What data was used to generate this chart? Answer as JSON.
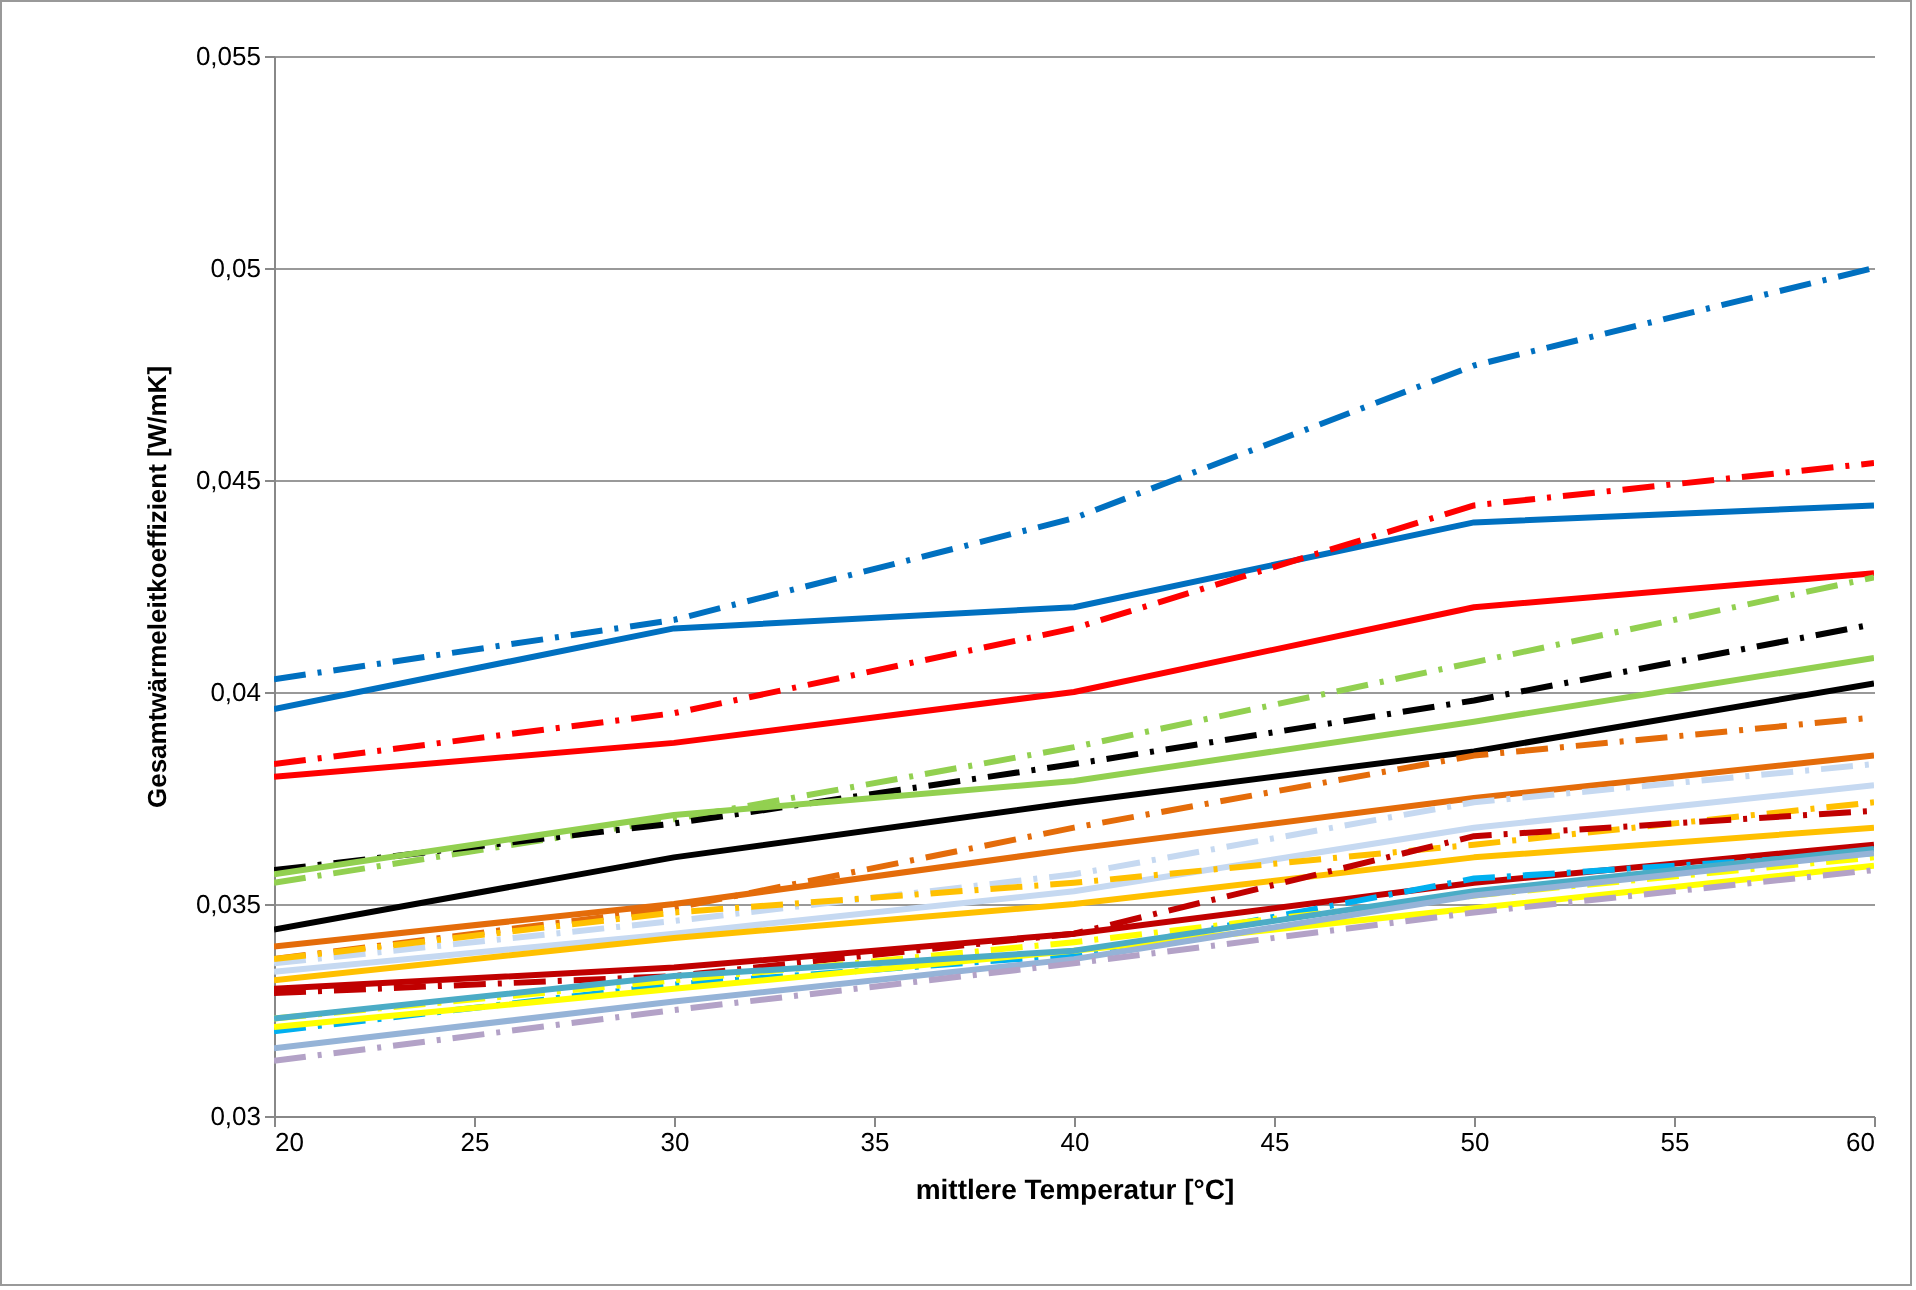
{
  "chart_data": {
    "type": "line",
    "xlabel": "mittlere Temperatur [°C]",
    "ylabel": "Gesamtwärmeleitkoeffizient [W/mK]",
    "x": [
      20,
      30,
      40,
      50,
      60
    ],
    "xlim": [
      20,
      60
    ],
    "xticks": [
      20,
      25,
      30,
      35,
      40,
      45,
      50,
      55,
      60
    ],
    "ylim": [
      0.03,
      0.055
    ],
    "yticks": [
      {
        "value": 0.03,
        "label": "0,03"
      },
      {
        "value": 0.035,
        "label": "0,035"
      },
      {
        "value": 0.04,
        "label": "0,04"
      },
      {
        "value": 0.045,
        "label": "0,045"
      },
      {
        "value": 0.05,
        "label": "0,05"
      },
      {
        "value": 0.055,
        "label": "0,055"
      }
    ],
    "grid": "y",
    "marker": "none",
    "series": [
      {
        "color": "#0070c0",
        "line_style": "dashdot",
        "values": [
          0.0403,
          0.0417,
          0.0441,
          0.0477,
          0.05
        ]
      },
      {
        "color": "#0070c0",
        "line_style": "solid",
        "values": [
          0.0396,
          0.0415,
          0.042,
          0.044,
          0.0444
        ]
      },
      {
        "color": "#ff0000",
        "line_style": "dashdot",
        "values": [
          0.0383,
          0.0395,
          0.0415,
          0.0444,
          0.0454
        ]
      },
      {
        "color": "#ff0000",
        "line_style": "solid",
        "values": [
          0.038,
          0.0388,
          0.04,
          0.042,
          0.0428
        ]
      },
      {
        "color": "#92d050",
        "line_style": "dashdot",
        "values": [
          0.0355,
          0.037,
          0.0387,
          0.0407,
          0.0427
        ]
      },
      {
        "color": "#000000",
        "line_style": "dashdot",
        "values": [
          0.0358,
          0.0369,
          0.0383,
          0.0398,
          0.0416
        ]
      },
      {
        "color": "#92d050",
        "line_style": "solid",
        "values": [
          0.0357,
          0.0371,
          0.0379,
          0.0393,
          0.0408
        ]
      },
      {
        "color": "#000000",
        "line_style": "solid",
        "values": [
          0.0344,
          0.0361,
          0.0374,
          0.0386,
          0.0402
        ]
      },
      {
        "color": "#e46c0a",
        "line_style": "dashdot",
        "values": [
          0.0337,
          0.0349,
          0.0368,
          0.0385,
          0.0394
        ]
      },
      {
        "color": "#e46c0a",
        "line_style": "solid",
        "values": [
          0.034,
          0.035,
          0.0363,
          0.0375,
          0.0385
        ]
      },
      {
        "color": "#c6d9f1",
        "line_style": "dashdot",
        "values": [
          0.0336,
          0.0346,
          0.0357,
          0.0374,
          0.0383
        ]
      },
      {
        "color": "#c6d9f1",
        "line_style": "solid",
        "values": [
          0.0334,
          0.0343,
          0.0353,
          0.0368,
          0.0378
        ]
      },
      {
        "color": "#ffc000",
        "line_style": "dashdot",
        "values": [
          0.0337,
          0.0348,
          0.0355,
          0.0364,
          0.0374
        ]
      },
      {
        "color": "#ffc000",
        "line_style": "solid",
        "values": [
          0.0332,
          0.0342,
          0.035,
          0.0361,
          0.0368
        ]
      },
      {
        "color": "#c00000",
        "line_style": "dashdot",
        "values": [
          0.0329,
          0.0333,
          0.0343,
          0.0366,
          0.0372
        ]
      },
      {
        "color": "#c00000",
        "line_style": "solid",
        "values": [
          0.033,
          0.0335,
          0.0343,
          0.0355,
          0.0364
        ]
      },
      {
        "color": "#00b0f0",
        "line_style": "dashdot",
        "values": [
          0.032,
          0.0331,
          0.0338,
          0.0356,
          0.0362
        ]
      },
      {
        "color": "#ffff00",
        "line_style": "dashdot",
        "values": [
          0.0323,
          0.0332,
          0.0341,
          0.0352,
          0.0361
        ]
      },
      {
        "color": "#ffff00",
        "line_style": "solid",
        "values": [
          0.0321,
          0.033,
          0.0339,
          0.0349,
          0.0359
        ]
      },
      {
        "color": "#4bacc6",
        "line_style": "solid",
        "values": [
          0.0323,
          0.0333,
          0.0339,
          0.0353,
          0.0363
        ]
      },
      {
        "color": "#95b3d7",
        "line_style": "solid",
        "values": [
          0.0316,
          0.0327,
          0.0337,
          0.0352,
          0.0362
        ]
      },
      {
        "color": "#b3a2c7",
        "line_style": "dashdot",
        "values": [
          0.0313,
          0.0325,
          0.0336,
          0.0348,
          0.0358
        ]
      }
    ]
  }
}
